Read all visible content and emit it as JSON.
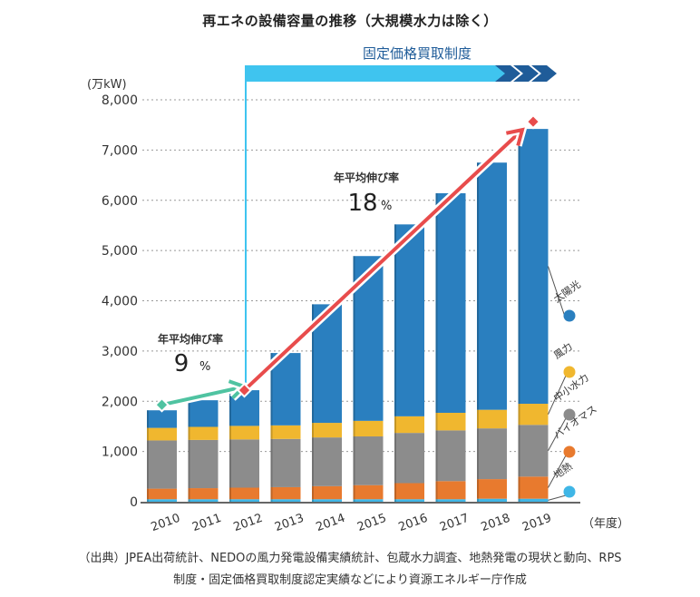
{
  "title": "再エネの設備容量の推移（大規模水力は除く）",
  "source_note_line1": "（出典）JPEA出荷統計、NEDOの風力発電設備実績統計、包蔵水力調査、地熱発電の現状と動向、RPS",
  "source_note_line2": "制度・固定価格買取制度認定実績などにより資源エネルギー庁作成",
  "colors": {
    "solar": "#2a7fbf",
    "wind": "#f0b72f",
    "small_hydro": "#8c8c8c",
    "biomass": "#e87a2e",
    "geothermal": "#3fb6e6",
    "fit_banner": "#3fc4ef",
    "fit_chevron": "#1f5c99",
    "growth_low": "#4fc3a1",
    "growth_high": "#e84c4c"
  },
  "chart_data": {
    "type": "bar",
    "stacked": true,
    "title": "再エネの設備容量の推移（大規模水力は除く）",
    "xlabel": "（年度）",
    "ylabel": "(万kW)",
    "ylim": [
      0,
      8000
    ],
    "yticks": [
      0,
      1000,
      2000,
      3000,
      4000,
      5000,
      6000,
      7000,
      8000
    ],
    "ytick_labels": [
      "0",
      "1,000",
      "2,000",
      "3,000",
      "4,000",
      "5,000",
      "6,000",
      "7,000",
      "8,000"
    ],
    "grid": "horizontal-dotted",
    "categories": [
      "2010",
      "2011",
      "2012",
      "2013",
      "2014",
      "2015",
      "2016",
      "2017",
      "2018",
      "2019"
    ],
    "series": [
      {
        "name": "地熱",
        "key": "geothermal",
        "values": [
          50,
          50,
          50,
          50,
          50,
          50,
          50,
          50,
          60,
          60
        ]
      },
      {
        "name": "バイオマス",
        "key": "biomass",
        "values": [
          210,
          220,
          230,
          240,
          260,
          280,
          320,
          360,
          390,
          440
        ]
      },
      {
        "name": "中小水力",
        "key": "small_hydro",
        "values": [
          960,
          960,
          960,
          960,
          970,
          970,
          1000,
          1010,
          1010,
          1030
        ]
      },
      {
        "name": "風力",
        "key": "wind",
        "values": [
          250,
          260,
          270,
          270,
          290,
          310,
          330,
          350,
          370,
          420
        ]
      },
      {
        "name": "太陽光",
        "key": "solar",
        "values": [
          350,
          530,
          710,
          1440,
          2360,
          3280,
          3820,
          4370,
          4920,
          5470
        ]
      }
    ],
    "totals": [
      1820,
      2020,
      2220,
      2960,
      3930,
      4890,
      5520,
      6140,
      6750,
      7420
    ],
    "legend": [
      "太陽光",
      "風力",
      "中小水力",
      "バイオマス",
      "地熱"
    ],
    "legend_placement": "right",
    "annotations": {
      "fit_banner": {
        "label": "固定価格買取制度",
        "start_category": "2012"
      },
      "growth_low": {
        "label": "年平均伸び率",
        "value": "9",
        "unit": "%",
        "from": "2010",
        "to": "2012"
      },
      "growth_high": {
        "label": "年平均伸び率",
        "value": "18",
        "unit": "%",
        "from": "2012",
        "to": "2019"
      }
    }
  }
}
